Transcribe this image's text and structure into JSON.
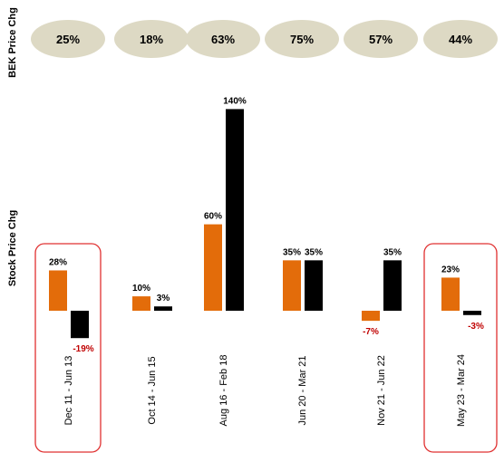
{
  "chart_data": {
    "type": "bar",
    "ylabel_top": "BEK Price Chg",
    "ylabel": "Stock Price Chg",
    "categories": [
      "Dec 11 - Jun 13",
      "Oct 14 - Jun 15",
      "Aug 16 - Feb 18",
      "Jun 20 - Mar 21",
      "Nov 21 - Jun 22",
      "May 23 - Mar 24"
    ],
    "bek_price_chg": [
      "25%",
      "18%",
      "63%",
      "75%",
      "57%",
      "44%"
    ],
    "series": [
      {
        "values": [
          28,
          10,
          60,
          35,
          -7,
          23
        ],
        "labels": [
          "28%",
          "10%",
          "60%",
          "35%",
          "-7%",
          "23%"
        ]
      },
      {
        "values": [
          -19,
          3,
          140,
          35,
          35,
          -3
        ],
        "labels": [
          "-19%",
          "3%",
          "140%",
          "35%",
          "35%",
          "-3%"
        ]
      }
    ],
    "highlighted": [
      "Dec 11 - Jun 13",
      "May 23 - Mar 24"
    ],
    "colors": {
      "series_1": "#e36c0a",
      "series_2": "#000000",
      "negative_label": "#c00000",
      "positive_label": "#000000",
      "bubble": "#ddd9c4",
      "highlight_box": "#e03030"
    }
  }
}
